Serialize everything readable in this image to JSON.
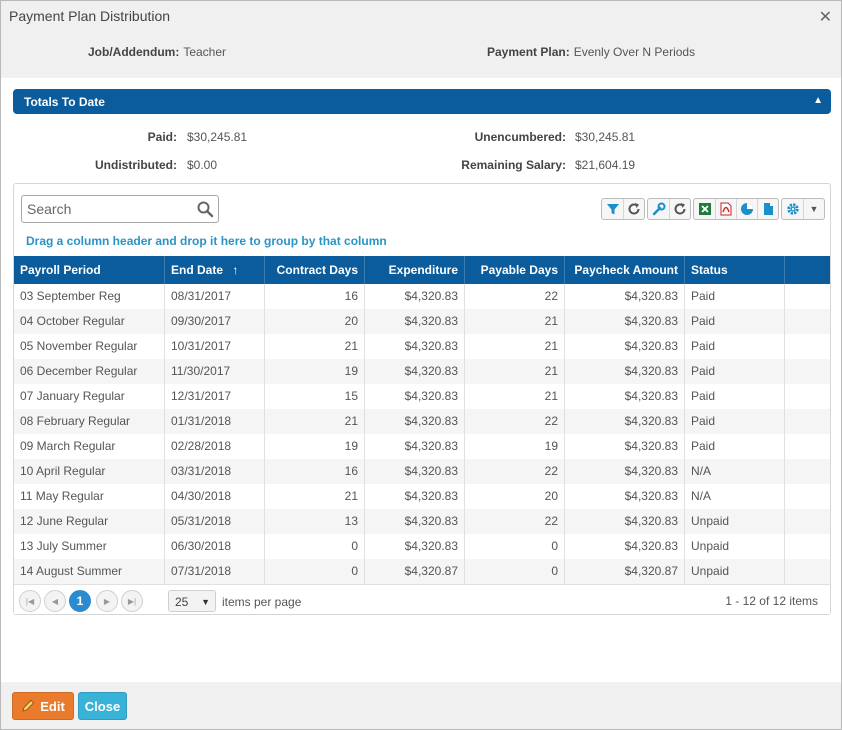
{
  "window": {
    "title": "Payment Plan Distribution"
  },
  "info": {
    "job_label": "Job/Addendum:",
    "job_value": "Teacher",
    "plan_label": "Payment Plan:",
    "plan_value": "Evenly Over N Periods"
  },
  "panel": {
    "title": "Totals To Date"
  },
  "totals": {
    "paid_label": "Paid:",
    "paid_value": "$30,245.81",
    "unencumbered_label": "Unencumbered:",
    "unencumbered_value": "$30,245.81",
    "undistributed_label": "Undistributed:",
    "undistributed_value": "$0.00",
    "remaining_label": "Remaining Salary:",
    "remaining_value": "$21,604.19"
  },
  "grid": {
    "search_placeholder": "Search",
    "group_hint": "Drag a column header and drop it here to group by that column",
    "sort_indicator": "↑",
    "columns": [
      "Payroll Period",
      "End Date",
      "Contract Days",
      "Expenditure",
      "Payable Days",
      "Paycheck Amount",
      "Status"
    ],
    "rows": [
      [
        "03 September Reg",
        "08/31/2017",
        "16",
        "$4,320.83",
        "22",
        "$4,320.83",
        "Paid"
      ],
      [
        "04 October Regular",
        "09/30/2017",
        "20",
        "$4,320.83",
        "21",
        "$4,320.83",
        "Paid"
      ],
      [
        "05 November Regular",
        "10/31/2017",
        "21",
        "$4,320.83",
        "21",
        "$4,320.83",
        "Paid"
      ],
      [
        "06 December Regular",
        "11/30/2017",
        "19",
        "$4,320.83",
        "21",
        "$4,320.83",
        "Paid"
      ],
      [
        "07 January Regular",
        "12/31/2017",
        "15",
        "$4,320.83",
        "21",
        "$4,320.83",
        "Paid"
      ],
      [
        "08 February Regular",
        "01/31/2018",
        "21",
        "$4,320.83",
        "22",
        "$4,320.83",
        "Paid"
      ],
      [
        "09 March Regular",
        "02/28/2018",
        "19",
        "$4,320.83",
        "19",
        "$4,320.83",
        "Paid"
      ],
      [
        "10 April Regular",
        "03/31/2018",
        "16",
        "$4,320.83",
        "22",
        "$4,320.83",
        "N/A"
      ],
      [
        "11 May Regular",
        "04/30/2018",
        "21",
        "$4,320.83",
        "20",
        "$4,320.83",
        "N/A"
      ],
      [
        "12 June Regular",
        "05/31/2018",
        "13",
        "$4,320.83",
        "22",
        "$4,320.83",
        "Unpaid"
      ],
      [
        "13 July Summer",
        "06/30/2018",
        "0",
        "$4,320.83",
        "0",
        "$4,320.83",
        "Unpaid"
      ],
      [
        "14 August Summer",
        "07/31/2018",
        "0",
        "$4,320.87",
        "0",
        "$4,320.87",
        "Unpaid"
      ]
    ]
  },
  "pager": {
    "current_page": "1",
    "page_size": "25",
    "items_per_page_label": "items per page",
    "info": "1 - 12 of 12 items"
  },
  "footer": {
    "edit_label": "Edit",
    "close_label": "Close"
  },
  "colors": {
    "header_blue": "#0a5c9c",
    "hint_blue": "#2a93c7",
    "edit_orange": "#ea7a2c",
    "close_cyan": "#38b2d6"
  }
}
